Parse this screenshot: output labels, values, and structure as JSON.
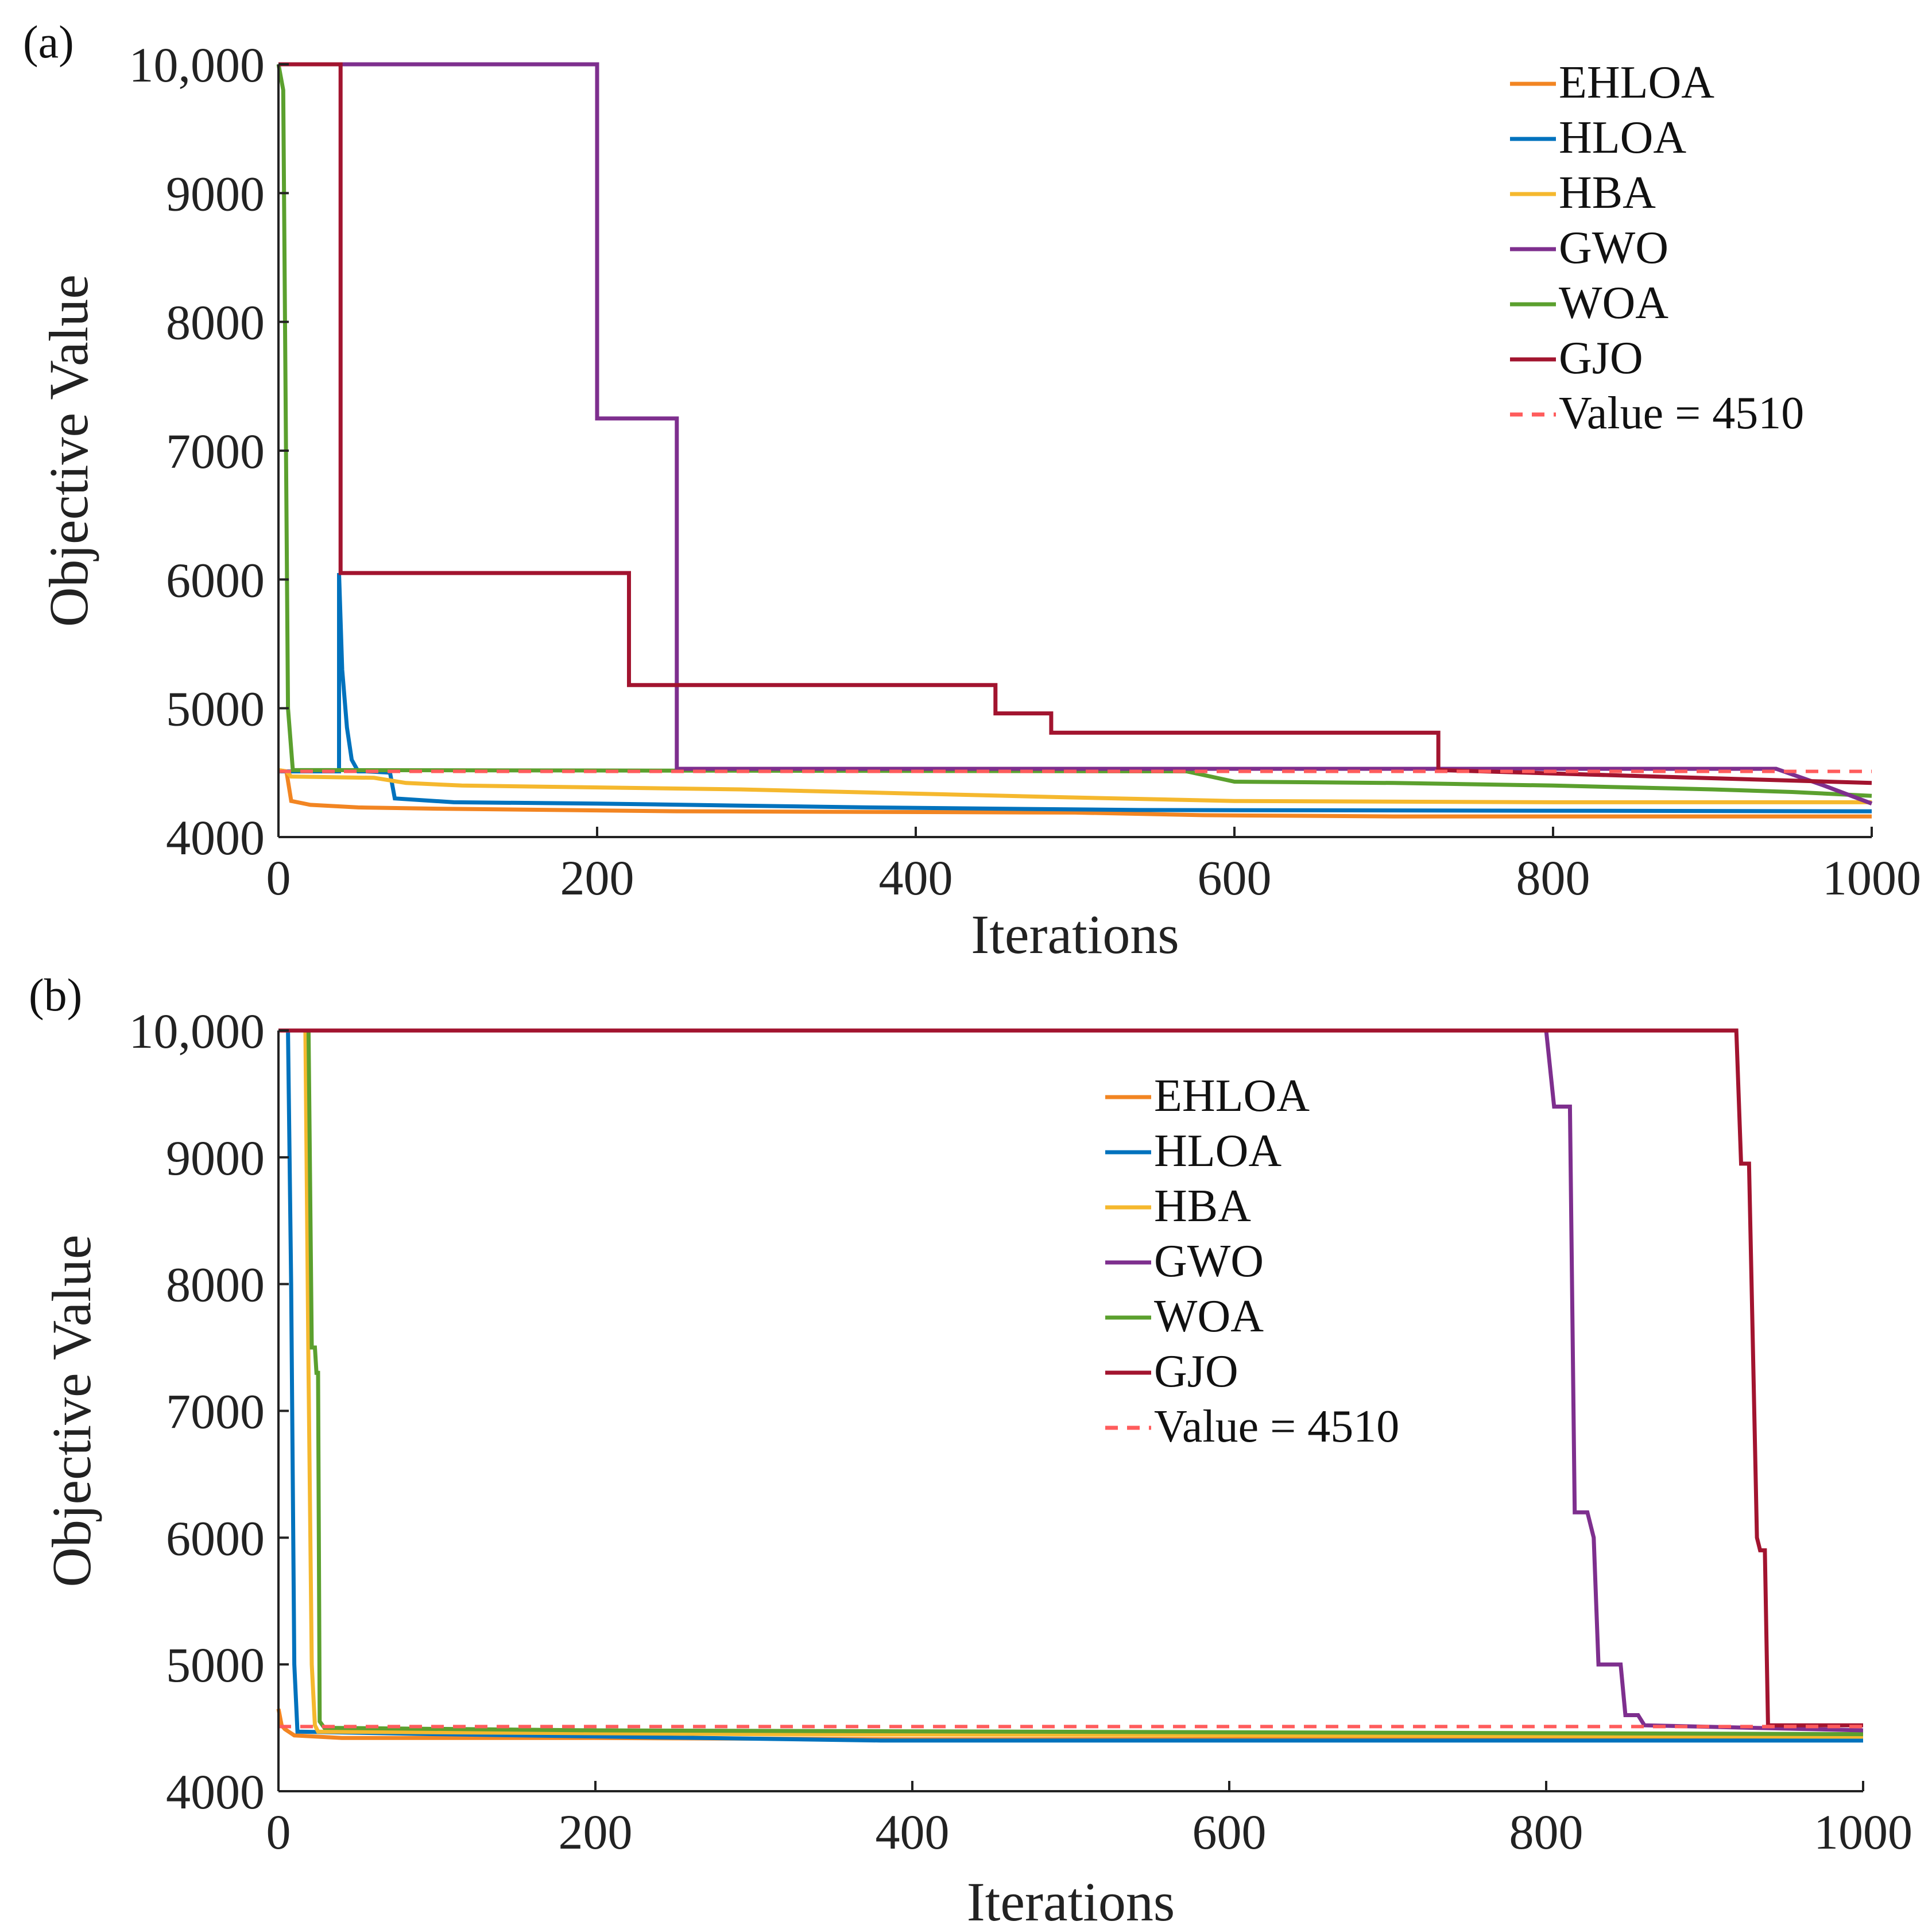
{
  "chart_data": [
    {
      "type": "line",
      "panel_label": "(a)",
      "xlabel": "Iterations",
      "ylabel": "Objective Value",
      "xlim": [
        0,
        1000
      ],
      "ylim": [
        4000,
        10000
      ],
      "xticks": [
        0,
        200,
        400,
        600,
        800,
        1000
      ],
      "xtick_labels": [
        "0",
        "200",
        "400",
        "600",
        "800",
        "1000"
      ],
      "yticks": [
        4000,
        5000,
        6000,
        7000,
        8000,
        9000,
        10000
      ],
      "ytick_labels": [
        "4000",
        "5000",
        "6000",
        "7000",
        "8000",
        "9000",
        "10,000"
      ],
      "legend_position": "top-right",
      "series": [
        {
          "name": "EHLOA",
          "color": "#F28522",
          "style": "solid",
          "x": [
            0,
            5,
            8,
            20,
            50,
            100,
            250,
            500,
            580,
            700,
            1000
          ],
          "y": [
            4520,
            4510,
            4280,
            4250,
            4230,
            4220,
            4200,
            4190,
            4170,
            4160,
            4160
          ]
        },
        {
          "name": "HLOA",
          "color": "#0072BD",
          "style": "solid",
          "x": [
            0,
            38,
            38,
            40,
            43,
            46,
            50,
            55,
            70,
            73,
            110,
            200,
            370,
            540,
            1000
          ],
          "y": [
            4510,
            4510,
            6050,
            5300,
            4850,
            4600,
            4510,
            4510,
            4500,
            4300,
            4270,
            4260,
            4230,
            4210,
            4200
          ]
        },
        {
          "name": "HBA",
          "color": "#F5B82E",
          "style": "solid",
          "x": [
            0,
            5,
            8,
            60,
            80,
            115,
            290,
            390,
            490,
            600,
            800,
            1000
          ],
          "y": [
            4520,
            4510,
            4470,
            4460,
            4420,
            4400,
            4370,
            4340,
            4310,
            4280,
            4270,
            4270
          ]
        },
        {
          "name": "GWO",
          "color": "#7E2F8E",
          "style": "solid",
          "x": [
            0,
            39,
            39,
            200,
            200,
            250,
            250,
            940,
            970,
            1000
          ],
          "y": [
            10000,
            10000,
            10000,
            10000,
            7250,
            7250,
            4530,
            4530,
            4400,
            4260
          ]
        },
        {
          "name": "WOA",
          "color": "#5BA02E",
          "style": "solid",
          "x": [
            0,
            3,
            6,
            9,
            570,
            600,
            700,
            800,
            900,
            950,
            1000
          ],
          "y": [
            10000,
            9800,
            5000,
            4520,
            4510,
            4430,
            4420,
            4400,
            4370,
            4350,
            4320
          ]
        },
        {
          "name": "GJO",
          "color": "#A2142F",
          "style": "solid",
          "x": [
            0,
            39,
            39,
            220,
            220,
            450,
            450,
            485,
            485,
            728,
            728,
            1000
          ],
          "y": [
            10000,
            10000,
            6050,
            6050,
            5180,
            5180,
            4960,
            4960,
            4810,
            4810,
            4520,
            4420
          ]
        },
        {
          "name": "Value = 4510",
          "color": "#FF5C5C",
          "style": "dashed",
          "x": [
            0,
            1000
          ],
          "y": [
            4510,
            4510
          ]
        }
      ]
    },
    {
      "type": "line",
      "panel_label": "(b)",
      "xlabel": "Iterations",
      "ylabel": "Objective Value",
      "xlim": [
        0,
        1000
      ],
      "ylim": [
        4000,
        10000
      ],
      "xticks": [
        0,
        200,
        400,
        600,
        800,
        1000
      ],
      "xtick_labels": [
        "0",
        "200",
        "400",
        "600",
        "800",
        "1000"
      ],
      "yticks": [
        4000,
        5000,
        6000,
        7000,
        8000,
        9000,
        10000
      ],
      "ytick_labels": [
        "4000",
        "5000",
        "6000",
        "7000",
        "8000",
        "9000",
        "10,000"
      ],
      "legend_position": "top-center",
      "series": [
        {
          "name": "EHLOA",
          "color": "#F28522",
          "style": "solid",
          "x": [
            0,
            2,
            4,
            10,
            40,
            200,
            400,
            1000
          ],
          "y": [
            4650,
            4520,
            4490,
            4440,
            4420,
            4420,
            4410,
            4410
          ]
        },
        {
          "name": "HLOA",
          "color": "#0072BD",
          "style": "solid",
          "x": [
            0,
            6,
            8,
            10,
            12,
            100,
            380,
            1000
          ],
          "y": [
            10000,
            10000,
            8000,
            5000,
            4470,
            4450,
            4400,
            4400
          ]
        },
        {
          "name": "HBA",
          "color": "#F5B82E",
          "style": "solid",
          "x": [
            0,
            17,
            19,
            21,
            23,
            25,
            300,
            1000
          ],
          "y": [
            10000,
            10000,
            7300,
            5000,
            4520,
            4470,
            4450,
            4430
          ]
        },
        {
          "name": "GWO",
          "color": "#7E2F8E",
          "style": "solid",
          "x": [
            0,
            800,
            805,
            810,
            811,
            815,
            818,
            825,
            826,
            830,
            833,
            847,
            850,
            858,
            862,
            1000
          ],
          "y": [
            10000,
            10000,
            9400,
            9400,
            9400,
            9400,
            6200,
            6200,
            6200,
            6000,
            5000,
            5000,
            4600,
            4600,
            4520,
            4480
          ]
        },
        {
          "name": "WOA",
          "color": "#5BA02E",
          "style": "solid",
          "x": [
            0,
            19,
            21,
            23,
            24,
            25,
            26,
            29,
            200,
            1000
          ],
          "y": [
            10000,
            10000,
            7500,
            7500,
            7300,
            7300,
            4550,
            4500,
            4480,
            4450
          ]
        },
        {
          "name": "GJO",
          "color": "#A2142F",
          "style": "solid",
          "x": [
            0,
            920,
            923,
            928,
            933,
            935,
            938,
            940,
            1000
          ],
          "y": [
            10000,
            10000,
            8950,
            8950,
            6000,
            5900,
            5900,
            4520,
            4520
          ]
        },
        {
          "name": "Value = 4510",
          "color": "#FF5C5C",
          "style": "dashed",
          "x": [
            0,
            1000
          ],
          "y": [
            4510,
            4510
          ]
        }
      ]
    }
  ]
}
